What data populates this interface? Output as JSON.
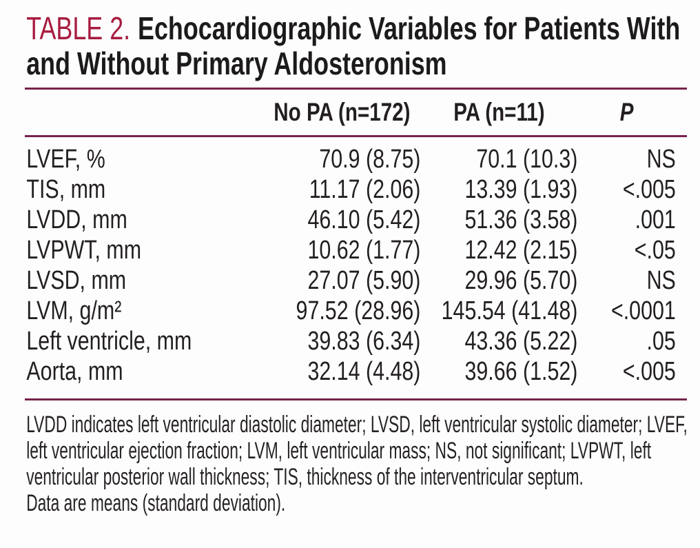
{
  "page": {
    "title_label": "TABLE 2.",
    "title_text": "Echocardiographic Variables for Patients With and Without Primary Aldosteronism"
  },
  "table": {
    "headers": {
      "no_pa": "No PA (n=172)",
      "pa": "PA (n=11)",
      "p": "P"
    },
    "rows": [
      {
        "variable": "LVEF, %",
        "no_pa": "70.9 (8.75)",
        "pa": "70.1 (10.3)",
        "p": "NS"
      },
      {
        "variable": "TIS, mm",
        "no_pa": "11.17 (2.06)",
        "pa": "13.39 (1.93)",
        "p": "<.005"
      },
      {
        "variable": "LVDD, mm",
        "no_pa": "46.10 (5.42)",
        "pa": "51.36 (3.58)",
        "p": ".001"
      },
      {
        "variable": "LVPWT, mm",
        "no_pa": "10.62 (1.77)",
        "pa": "12.42 (2.15)",
        "p": "<.05"
      },
      {
        "variable": "LVSD, mm",
        "no_pa": "27.07 (5.90)",
        "pa": "29.96 (5.70)",
        "p": "NS"
      },
      {
        "variable": "LVM, g/m²",
        "no_pa": "97.52 (28.96)",
        "pa": "145.54 (41.48)",
        "p": "<.0001"
      },
      {
        "variable": "Left ventricle, mm",
        "no_pa": "39.83 (6.34)",
        "pa": "43.36 (5.22)",
        "p": ".05"
      },
      {
        "variable": "Aorta, mm",
        "no_pa": "32.14 (4.48)",
        "pa": "39.66 (1.52)",
        "p": "<.005"
      }
    ]
  },
  "footnotes": {
    "abbreviations": "LVDD indicates left ventricular diastolic diameter; LVSD, left ventricular systolic diameter; LVEF, left ventricular ejection fraction; LVM, left ventricular mass; NS, not significant; LVPWT, left ventricular posterior wall thickness; TIS, thickness of the interventricular septum.",
    "data_note": "Data are means (standard deviation)."
  },
  "colors": {
    "accent_crimson": "#A81C3F",
    "rule_maroon": "#75224A",
    "text_black": "#231F20"
  }
}
